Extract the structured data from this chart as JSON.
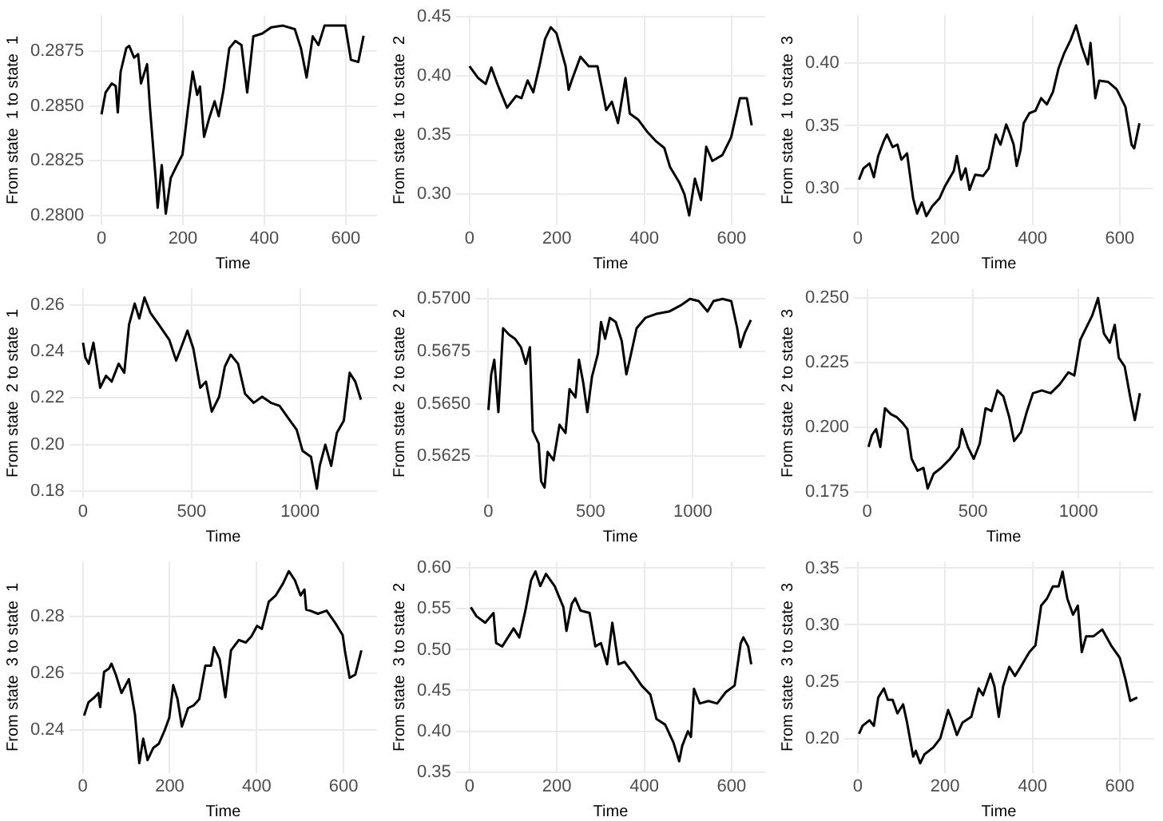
{
  "chart_data": [
    {
      "type": "line",
      "xlabel": "Time",
      "ylabel": "From state  1 to state  1",
      "color": "#000000",
      "grid": true,
      "xlim": [
        -31,
        677
      ],
      "ylim": [
        0.27957,
        0.28913
      ],
      "xticks": [
        0,
        200,
        400,
        600
      ],
      "yticks": [
        {
          "value": 0.28,
          "label": "0.2800"
        },
        {
          "value": 0.2825,
          "label": "0.2825"
        },
        {
          "value": 0.285,
          "label": "0.2850"
        },
        {
          "value": 0.2875,
          "label": "0.2875"
        }
      ],
      "x": [
        0,
        10,
        25,
        35,
        40,
        47,
        61,
        68,
        80,
        90,
        97,
        112,
        119,
        133,
        138,
        148,
        158,
        170,
        184,
        199,
        212,
        224,
        235,
        242,
        252,
        264,
        278,
        288,
        300,
        314,
        329,
        344,
        358,
        373,
        395,
        417,
        446,
        475,
        490,
        504,
        519,
        533,
        548,
        599,
        613,
        631,
        644
      ],
      "values": [
        0.28461,
        0.28561,
        0.28602,
        0.2859,
        0.2847,
        0.28656,
        0.28764,
        0.28774,
        0.2872,
        0.28736,
        0.28602,
        0.2869,
        0.28494,
        0.2817,
        0.28035,
        0.2823,
        0.28008,
        0.2817,
        0.28224,
        0.28278,
        0.2848,
        0.28656,
        0.2855,
        0.28588,
        0.28359,
        0.2844,
        0.28521,
        0.28453,
        0.28575,
        0.28763,
        0.28796,
        0.28777,
        0.28561,
        0.28817,
        0.2883,
        0.28858,
        0.28866,
        0.2885,
        0.28763,
        0.28629,
        0.28817,
        0.28777,
        0.28866,
        0.28866,
        0.2871,
        0.287,
        0.2882
      ]
    },
    {
      "type": "line",
      "xlabel": "Time",
      "ylabel": "From state  1 to state  2",
      "color": "#000000",
      "grid": true,
      "xlim": [
        -31,
        677
      ],
      "ylim": [
        0.274,
        0.451
      ],
      "xticks": [
        0,
        200,
        400,
        600
      ],
      "yticks": [
        {
          "value": 0.3,
          "label": "0.30"
        },
        {
          "value": 0.35,
          "label": "0.35"
        },
        {
          "value": 0.4,
          "label": "0.40"
        },
        {
          "value": 0.45,
          "label": "0.45"
        }
      ],
      "x": [
        0,
        20,
        37,
        50,
        66,
        86,
        107,
        119,
        133,
        146,
        160,
        173,
        186,
        199,
        220,
        227,
        234,
        254,
        273,
        293,
        313,
        326,
        340,
        357,
        367,
        386,
        406,
        426,
        446,
        459,
        480,
        492,
        503,
        516,
        530,
        542,
        556,
        579,
        599,
        619,
        635,
        646
      ],
      "values": [
        0.408,
        0.398,
        0.393,
        0.407,
        0.391,
        0.373,
        0.383,
        0.381,
        0.396,
        0.386,
        0.408,
        0.431,
        0.441,
        0.436,
        0.408,
        0.388,
        0.396,
        0.416,
        0.408,
        0.408,
        0.371,
        0.378,
        0.36,
        0.398,
        0.368,
        0.363,
        0.353,
        0.345,
        0.339,
        0.323,
        0.31,
        0.3,
        0.282,
        0.313,
        0.295,
        0.34,
        0.328,
        0.333,
        0.348,
        0.381,
        0.381,
        0.358
      ]
    },
    {
      "type": "line",
      "xlabel": "Time",
      "ylabel": "From state  1 to state  3",
      "color": "#000000",
      "grid": true,
      "xlim": [
        -31,
        677
      ],
      "ylim": [
        0.271,
        0.438
      ],
      "xticks": [
        0,
        200,
        400,
        600
      ],
      "yticks": [
        {
          "value": 0.3,
          "label": "0.30"
        },
        {
          "value": 0.35,
          "label": "0.35"
        },
        {
          "value": 0.4,
          "label": "0.40"
        }
      ],
      "x": [
        3,
        13,
        27,
        37,
        47,
        60,
        67,
        80,
        91,
        100,
        113,
        127,
        136,
        147,
        157,
        171,
        187,
        200,
        220,
        227,
        237,
        247,
        256,
        269,
        287,
        300,
        316,
        327,
        340,
        347,
        357,
        364,
        373,
        380,
        393,
        407,
        420,
        433,
        447,
        460,
        473,
        487,
        500,
        513,
        527,
        533,
        544,
        553,
        573,
        593,
        613,
        627,
        633,
        645
      ],
      "values": [
        0.307,
        0.316,
        0.32,
        0.309,
        0.326,
        0.338,
        0.343,
        0.333,
        0.335,
        0.323,
        0.328,
        0.292,
        0.28,
        0.289,
        0.278,
        0.286,
        0.292,
        0.302,
        0.314,
        0.326,
        0.307,
        0.316,
        0.299,
        0.311,
        0.31,
        0.316,
        0.343,
        0.335,
        0.351,
        0.345,
        0.335,
        0.318,
        0.331,
        0.352,
        0.36,
        0.362,
        0.372,
        0.367,
        0.377,
        0.396,
        0.408,
        0.418,
        0.43,
        0.413,
        0.399,
        0.416,
        0.372,
        0.386,
        0.385,
        0.379,
        0.365,
        0.335,
        0.332,
        0.352
      ]
    },
    {
      "type": "line",
      "xlabel": "Time",
      "ylabel": "From state  2 to state  1",
      "color": "#000000",
      "grid": true,
      "xlim": [
        -63,
        1354
      ],
      "ylim": [
        0.177,
        0.267
      ],
      "xticks": [
        0,
        500,
        1000
      ],
      "yticks": [
        {
          "value": 0.18,
          "label": "0.18"
        },
        {
          "value": 0.2,
          "label": "0.20"
        },
        {
          "value": 0.22,
          "label": "0.22"
        },
        {
          "value": 0.24,
          "label": "0.24"
        },
        {
          "value": 0.26,
          "label": "0.26"
        }
      ],
      "x": [
        0,
        11,
        26,
        48,
        79,
        106,
        132,
        164,
        190,
        212,
        238,
        259,
        283,
        310,
        349,
        397,
        429,
        455,
        481,
        508,
        540,
        566,
        593,
        627,
        653,
        680,
        714,
        746,
        786,
        825,
        865,
        905,
        944,
        984,
        1011,
        1050,
        1077,
        1090,
        1116,
        1143,
        1169,
        1201,
        1228,
        1254,
        1280
      ],
      "values": [
        0.2437,
        0.2373,
        0.2347,
        0.2437,
        0.2244,
        0.2295,
        0.227,
        0.2347,
        0.2308,
        0.2515,
        0.2605,
        0.2541,
        0.2631,
        0.2566,
        0.2515,
        0.245,
        0.236,
        0.2424,
        0.2489,
        0.2412,
        0.2244,
        0.227,
        0.2141,
        0.2205,
        0.2334,
        0.2386,
        0.2347,
        0.2218,
        0.2179,
        0.2205,
        0.2179,
        0.2166,
        0.2115,
        0.2063,
        0.1973,
        0.1947,
        0.181,
        0.1908,
        0.1999,
        0.1908,
        0.205,
        0.2102,
        0.2308,
        0.227,
        0.2192
      ]
    },
    {
      "type": "line",
      "xlabel": "Time",
      "ylabel": "From state  2 to state  2",
      "color": "#000000",
      "grid": true,
      "xlim": [
        -63,
        1354
      ],
      "ylim": [
        0.5605,
        0.5705
      ],
      "xticks": [
        0,
        500,
        1000
      ],
      "yticks": [
        {
          "value": 0.5625,
          "label": "0.5625"
        },
        {
          "value": 0.565,
          "label": "0.5650"
        },
        {
          "value": 0.5675,
          "label": "0.5675"
        },
        {
          "value": 0.57,
          "label": "0.5700"
        }
      ],
      "x": [
        0,
        14,
        29,
        49,
        72,
        101,
        130,
        159,
        183,
        203,
        217,
        246,
        258,
        275,
        290,
        319,
        348,
        377,
        397,
        426,
        443,
        464,
        484,
        507,
        536,
        551,
        571,
        594,
        623,
        652,
        675,
        696,
        725,
        768,
        826,
        884,
        942,
        986,
        1029,
        1072,
        1101,
        1145,
        1188,
        1217,
        1232,
        1255,
        1284
      ],
      "values": [
        0.5647,
        0.5664,
        0.5671,
        0.5646,
        0.5686,
        0.5683,
        0.5681,
        0.5677,
        0.5669,
        0.5677,
        0.5637,
        0.5631,
        0.5613,
        0.561,
        0.5627,
        0.5623,
        0.564,
        0.5636,
        0.5657,
        0.5653,
        0.5671,
        0.566,
        0.5646,
        0.5663,
        0.5674,
        0.5689,
        0.5681,
        0.5691,
        0.5689,
        0.568,
        0.5664,
        0.5673,
        0.5686,
        0.5691,
        0.5693,
        0.5694,
        0.5697,
        0.57,
        0.5699,
        0.5694,
        0.5699,
        0.57,
        0.5699,
        0.5686,
        0.5677,
        0.5684,
        0.569
      ]
    },
    {
      "type": "line",
      "xlabel": "Time",
      "ylabel": "From state  2 to state  3",
      "color": "#000000",
      "grid": true,
      "xlim": [
        -63,
        1354
      ],
      "ylim": [
        0.1725,
        0.2537
      ],
      "xticks": [
        0,
        500,
        1000
      ],
      "yticks": [
        {
          "value": 0.175,
          "label": "0.175"
        },
        {
          "value": 0.2,
          "label": "0.200"
        },
        {
          "value": 0.225,
          "label": "0.225"
        },
        {
          "value": 0.25,
          "label": "0.250"
        }
      ],
      "x": [
        6,
        22,
        42,
        62,
        84,
        112,
        140,
        168,
        190,
        210,
        238,
        266,
        286,
        314,
        350,
        392,
        434,
        448,
        476,
        504,
        532,
        560,
        588,
        616,
        644,
        672,
        695,
        728,
        756,
        784,
        826,
        868,
        910,
        952,
        980,
        1008,
        1036,
        1064,
        1092,
        1120,
        1148,
        1171,
        1190,
        1218,
        1246,
        1266,
        1290
      ],
      "values": [
        0.1923,
        0.1969,
        0.1992,
        0.1923,
        0.2073,
        0.205,
        0.2038,
        0.2015,
        0.1992,
        0.1877,
        0.1831,
        0.1842,
        0.1762,
        0.1819,
        0.1842,
        0.1877,
        0.1923,
        0.1992,
        0.1923,
        0.1877,
        0.1935,
        0.2073,
        0.2062,
        0.2142,
        0.2119,
        0.2038,
        0.1946,
        0.1981,
        0.2062,
        0.2131,
        0.2142,
        0.2131,
        0.2165,
        0.2212,
        0.22,
        0.2338,
        0.2385,
        0.2431,
        0.25,
        0.2362,
        0.2327,
        0.2396,
        0.2269,
        0.2235,
        0.2108,
        0.2027,
        0.2131
      ]
    },
    {
      "type": "line",
      "xlabel": "Time",
      "ylabel": "From state  3 to state  1",
      "color": "#000000",
      "grid": true,
      "xlim": [
        -31,
        677
      ],
      "ylim": [
        0.2247,
        0.2996
      ],
      "xticks": [
        0,
        200,
        400,
        600
      ],
      "yticks": [
        {
          "value": 0.24,
          "label": "0.24"
        },
        {
          "value": 0.26,
          "label": "0.26"
        },
        {
          "value": 0.28,
          "label": "0.28"
        }
      ],
      "x": [
        3,
        13,
        27,
        36,
        40,
        49,
        60,
        66,
        76,
        89,
        106,
        120,
        130,
        139,
        149,
        162,
        175,
        189,
        199,
        208,
        218,
        228,
        242,
        255,
        268,
        282,
        295,
        302,
        315,
        328,
        341,
        359,
        375,
        388,
        401,
        412,
        428,
        444,
        461,
        474,
        488,
        501,
        510,
        514,
        523,
        541,
        561,
        581,
        598,
        603,
        614,
        627,
        641
      ],
      "values": [
        0.245,
        0.2497,
        0.2515,
        0.253,
        0.248,
        0.2605,
        0.2616,
        0.2634,
        0.2595,
        0.253,
        0.2579,
        0.2454,
        0.2281,
        0.2368,
        0.2292,
        0.2335,
        0.235,
        0.24,
        0.2443,
        0.2558,
        0.2508,
        0.2411,
        0.2476,
        0.2486,
        0.2508,
        0.2627,
        0.2627,
        0.2692,
        0.2649,
        0.2515,
        0.2681,
        0.2718,
        0.2709,
        0.2731,
        0.2768,
        0.2757,
        0.2854,
        0.2876,
        0.2919,
        0.2962,
        0.293,
        0.2876,
        0.2897,
        0.2826,
        0.2822,
        0.2811,
        0.2822,
        0.2778,
        0.2735,
        0.2681,
        0.2584,
        0.2595,
        0.2681
      ]
    },
    {
      "type": "line",
      "xlabel": "Time",
      "ylabel": "From state  3 to state  2",
      "color": "#000000",
      "grid": true,
      "xlim": [
        -31,
        677
      ],
      "ylim": [
        0.349,
        0.608
      ],
      "xticks": [
        0,
        200,
        400,
        600
      ],
      "yticks": [
        {
          "value": 0.35,
          "label": "0.35"
        },
        {
          "value": 0.4,
          "label": "0.40"
        },
        {
          "value": 0.45,
          "label": "0.45"
        },
        {
          "value": 0.5,
          "label": "0.50"
        },
        {
          "value": 0.55,
          "label": "0.55"
        },
        {
          "value": 0.6,
          "label": "0.60"
        }
      ],
      "x": [
        3,
        16,
        36,
        55,
        61,
        75,
        88,
        101,
        114,
        128,
        141,
        151,
        162,
        175,
        195,
        215,
        222,
        234,
        242,
        254,
        275,
        288,
        301,
        315,
        327,
        341,
        355,
        375,
        394,
        414,
        428,
        448,
        467,
        480,
        487,
        500,
        507,
        514,
        527,
        547,
        567,
        587,
        607,
        621,
        627,
        638,
        645
      ],
      "values": [
        0.552,
        0.541,
        0.533,
        0.545,
        0.508,
        0.504,
        0.515,
        0.526,
        0.515,
        0.548,
        0.585,
        0.596,
        0.578,
        0.593,
        0.578,
        0.552,
        0.523,
        0.556,
        0.563,
        0.548,
        0.545,
        0.504,
        0.508,
        0.482,
        0.533,
        0.482,
        0.485,
        0.471,
        0.456,
        0.445,
        0.415,
        0.408,
        0.386,
        0.363,
        0.382,
        0.4,
        0.393,
        0.452,
        0.434,
        0.437,
        0.434,
        0.448,
        0.456,
        0.508,
        0.515,
        0.504,
        0.482
      ]
    },
    {
      "type": "line",
      "xlabel": "Time",
      "ylabel": "From state  3 to state  3",
      "color": "#000000",
      "grid": true,
      "xlim": [
        -31,
        677
      ],
      "ylim": [
        0.1697,
        0.3558
      ],
      "xticks": [
        0,
        200,
        400,
        600
      ],
      "yticks": [
        {
          "value": 0.2,
          "label": "0.20"
        },
        {
          "value": 0.25,
          "label": "0.25"
        },
        {
          "value": 0.3,
          "label": "0.30"
        },
        {
          "value": 0.35,
          "label": "0.35"
        }
      ],
      "x": [
        3,
        11,
        27,
        37,
        47,
        60,
        69,
        80,
        91,
        104,
        113,
        127,
        133,
        143,
        153,
        173,
        189,
        207,
        216,
        227,
        240,
        260,
        277,
        287,
        304,
        313,
        323,
        333,
        347,
        360,
        373,
        393,
        407,
        420,
        433,
        447,
        460,
        469,
        480,
        493,
        504,
        513,
        523,
        540,
        560,
        580,
        600,
        613,
        624,
        640
      ],
      "values": [
        0.204,
        0.211,
        0.216,
        0.211,
        0.236,
        0.244,
        0.234,
        0.234,
        0.222,
        0.23,
        0.214,
        0.184,
        0.189,
        0.178,
        0.186,
        0.192,
        0.2,
        0.225,
        0.216,
        0.203,
        0.214,
        0.219,
        0.244,
        0.238,
        0.257,
        0.246,
        0.219,
        0.246,
        0.263,
        0.255,
        0.263,
        0.276,
        0.282,
        0.317,
        0.323,
        0.334,
        0.334,
        0.347,
        0.323,
        0.309,
        0.317,
        0.276,
        0.29,
        0.29,
        0.296,
        0.282,
        0.271,
        0.252,
        0.233,
        0.236
      ]
    }
  ]
}
